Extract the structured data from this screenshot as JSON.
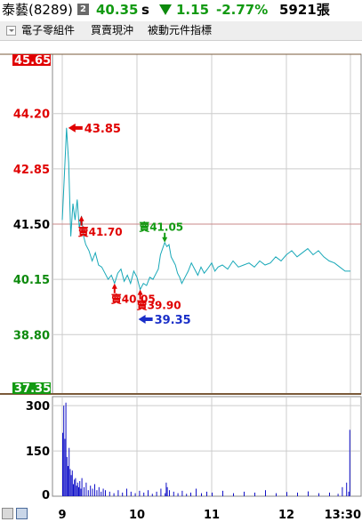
{
  "header": {
    "stock_name": "泰藝(8289)",
    "period_badge": "2",
    "price": "40.35",
    "price_suffix": "s",
    "change": "1.15",
    "change_percent": "-2.77%",
    "volume": "5921張"
  },
  "toolbar": {
    "industry": "電子零組件",
    "daytrade": "買賣現沖",
    "index_label": "被動元件指標"
  },
  "colors": {
    "down_green": "#129a12",
    "up_red": "#e00000",
    "price_line": "#18a8b8",
    "volume_bars": "#1010c8",
    "prev_close_line": "#c88888",
    "limit_line": "#7a5a3a",
    "limit_up_label_bg": "#e00000",
    "limit_down_label_bg": "#129a12"
  },
  "icons": [
    "dropdown-icon",
    "change-down-arrow-icon"
  ],
  "chart_data": [
    {
      "type": "line",
      "title": "",
      "x_tick_labels": [
        "9",
        "10",
        "11",
        "12",
        "13:30"
      ],
      "y_tick_labels": [
        "45.65",
        "44.20",
        "42.85",
        "41.50",
        "40.15",
        "38.80",
        "37.35"
      ],
      "ylim": [
        37.35,
        45.65
      ],
      "y_axis_side": "left",
      "limit_up": "45.65",
      "limit_down": "37.35",
      "reference_price": 41.5,
      "grid": true,
      "series": [
        {
          "x": [
            0,
            2,
            4,
            6,
            8,
            10,
            12,
            14,
            16,
            18,
            20,
            22,
            25,
            28,
            31,
            34,
            37,
            40,
            43,
            46,
            49,
            52,
            55,
            58,
            61,
            64,
            67,
            70,
            73,
            76,
            79,
            82,
            85,
            88,
            90,
            92,
            94,
            96,
            98,
            100,
            102,
            104,
            106,
            108,
            110,
            112,
            115,
            118,
            121,
            124,
            127,
            130,
            133,
            136,
            140,
            143,
            146,
            150,
            155,
            160,
            165,
            170,
            175,
            180,
            185,
            190,
            195,
            200,
            205,
            210,
            215,
            220,
            225,
            230,
            235,
            240,
            245,
            250,
            255,
            260,
            265,
            270
          ],
          "values": [
            41.6,
            42.7,
            43.85,
            43.0,
            41.2,
            42.0,
            41.6,
            42.1,
            41.4,
            41.7,
            41.2,
            41.0,
            40.85,
            40.6,
            40.8,
            40.5,
            40.45,
            40.3,
            40.15,
            40.25,
            40.05,
            40.3,
            40.4,
            40.1,
            40.25,
            40.05,
            40.35,
            40.2,
            39.9,
            40.05,
            40.0,
            40.2,
            40.15,
            40.3,
            40.4,
            40.75,
            40.9,
            41.05,
            40.95,
            41.0,
            40.7,
            40.6,
            40.5,
            40.3,
            40.2,
            40.05,
            40.2,
            40.35,
            40.55,
            40.4,
            40.25,
            40.45,
            40.3,
            40.4,
            40.55,
            40.35,
            40.45,
            40.5,
            40.4,
            40.6,
            40.45,
            40.5,
            40.55,
            40.45,
            40.6,
            40.5,
            40.55,
            40.7,
            40.6,
            40.75,
            40.85,
            40.7,
            40.8,
            40.9,
            40.75,
            40.85,
            40.7,
            40.6,
            40.55,
            40.45,
            40.35,
            40.35
          ]
        }
      ],
      "annotations": [
        {
          "label": "43.85",
          "value": 43.85,
          "kind": "day-high-arrow"
        },
        {
          "label": "賣41.70",
          "value": 41.7,
          "kind": "sell"
        },
        {
          "label": "賣41.05",
          "value": 41.05,
          "kind": "sell"
        },
        {
          "label": "賣39.90",
          "value": 39.9,
          "kind": "sell"
        },
        {
          "label": "賣40.05",
          "value": 40.05,
          "kind": "sell"
        },
        {
          "label": "39.35",
          "value": 39.35,
          "kind": "day-low-arrow"
        }
      ]
    },
    {
      "type": "bar",
      "title": "",
      "y_tick_labels": [
        "300",
        "150",
        "0"
      ],
      "ylim": [
        0,
        330
      ],
      "series": [
        {
          "x": [
            0,
            1,
            2,
            3,
            4,
            5,
            6,
            7,
            8,
            9,
            10,
            11,
            12,
            13,
            14,
            15,
            16,
            17,
            18,
            20,
            22,
            24,
            26,
            28,
            30,
            32,
            34,
            36,
            38,
            40,
            44,
            48,
            52,
            56,
            60,
            64,
            68,
            72,
            76,
            80,
            84,
            88,
            92,
            96,
            97,
            98,
            100,
            104,
            108,
            112,
            116,
            120,
            125,
            130,
            135,
            140,
            150,
            160,
            170,
            180,
            190,
            200,
            210,
            220,
            230,
            240,
            250,
            258,
            262,
            266,
            268,
            269
          ],
          "values": [
            210,
            300,
            190,
            310,
            130,
            100,
            160,
            90,
            70,
            85,
            40,
            55,
            60,
            35,
            45,
            30,
            50,
            25,
            60,
            30,
            45,
            20,
            35,
            25,
            40,
            20,
            30,
            15,
            25,
            20,
            15,
            10,
            20,
            12,
            25,
            15,
            10,
            18,
            12,
            20,
            8,
            15,
            25,
            10,
            45,
            30,
            20,
            15,
            10,
            18,
            8,
            12,
            25,
            10,
            15,
            12,
            18,
            10,
            15,
            12,
            20,
            10,
            14,
            12,
            16,
            10,
            12,
            8,
            30,
            45,
            15,
            220
          ]
        }
      ]
    }
  ]
}
